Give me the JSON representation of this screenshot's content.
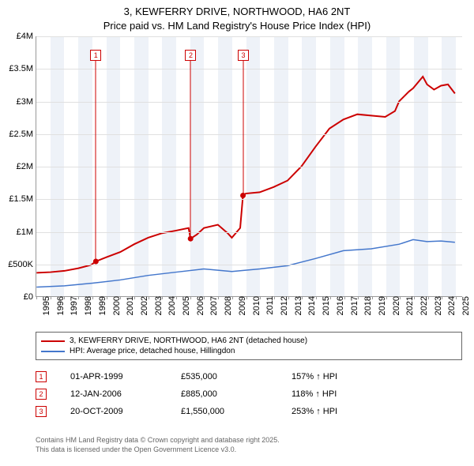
{
  "title_line1": "3, KEWFERRY DRIVE, NORTHWOOD, HA6 2NT",
  "title_line2": "Price paid vs. HM Land Registry's House Price Index (HPI)",
  "chart": {
    "type": "line",
    "background_color": "#ffffff",
    "shade_color": "#eef2f8",
    "grid_color": "#e0e0e0",
    "axis_color": "#999999",
    "xlim": [
      1995,
      2025.5
    ],
    "ylim": [
      0,
      4000000
    ],
    "ytick_step": 500000,
    "y_labels": [
      "£0",
      "£500K",
      "£1M",
      "£1.5M",
      "£2M",
      "£2.5M",
      "£3M",
      "£3.5M",
      "£4M"
    ],
    "x_years": [
      1995,
      1996,
      1997,
      1998,
      1999,
      2000,
      2001,
      2002,
      2003,
      2004,
      2005,
      2006,
      2007,
      2008,
      2009,
      2010,
      2011,
      2012,
      2013,
      2014,
      2015,
      2016,
      2017,
      2018,
      2019,
      2020,
      2021,
      2022,
      2023,
      2024,
      2025
    ],
    "series": [
      {
        "name": "3, KEWFERRY DRIVE, NORTHWOOD, HA6 2NT (detached house)",
        "color": "#cc0000",
        "width": 2,
        "points": [
          [
            1995,
            360000
          ],
          [
            1996,
            370000
          ],
          [
            1997,
            390000
          ],
          [
            1998,
            430000
          ],
          [
            1998.9,
            480000
          ],
          [
            1999.25,
            535000
          ],
          [
            2000,
            600000
          ],
          [
            2001,
            680000
          ],
          [
            2002,
            800000
          ],
          [
            2003,
            900000
          ],
          [
            2004,
            970000
          ],
          [
            2005,
            1010000
          ],
          [
            2005.9,
            1050000
          ],
          [
            2006.04,
            885000
          ],
          [
            2006.5,
            950000
          ],
          [
            2007,
            1050000
          ],
          [
            2008,
            1100000
          ],
          [
            2008.7,
            970000
          ],
          [
            2009,
            900000
          ],
          [
            2009.6,
            1050000
          ],
          [
            2009.8,
            1550000
          ],
          [
            2010,
            1580000
          ],
          [
            2011,
            1600000
          ],
          [
            2012,
            1680000
          ],
          [
            2013,
            1780000
          ],
          [
            2014,
            2000000
          ],
          [
            2015,
            2300000
          ],
          [
            2016,
            2580000
          ],
          [
            2017,
            2720000
          ],
          [
            2018,
            2800000
          ],
          [
            2019,
            2780000
          ],
          [
            2020,
            2760000
          ],
          [
            2020.7,
            2850000
          ],
          [
            2021,
            3000000
          ],
          [
            2021.7,
            3150000
          ],
          [
            2022,
            3200000
          ],
          [
            2022.7,
            3380000
          ],
          [
            2023,
            3260000
          ],
          [
            2023.5,
            3180000
          ],
          [
            2024,
            3240000
          ],
          [
            2024.5,
            3260000
          ],
          [
            2025,
            3120000
          ]
        ]
      },
      {
        "name": "HPI: Average price, detached house, Hillingdon",
        "color": "#4477cc",
        "width": 1.5,
        "points": [
          [
            1995,
            140000
          ],
          [
            1997,
            160000
          ],
          [
            1999,
            200000
          ],
          [
            2001,
            250000
          ],
          [
            2003,
            320000
          ],
          [
            2005,
            370000
          ],
          [
            2007,
            420000
          ],
          [
            2009,
            380000
          ],
          [
            2011,
            420000
          ],
          [
            2013,
            470000
          ],
          [
            2015,
            580000
          ],
          [
            2017,
            700000
          ],
          [
            2019,
            730000
          ],
          [
            2021,
            800000
          ],
          [
            2022,
            870000
          ],
          [
            2023,
            840000
          ],
          [
            2024,
            850000
          ],
          [
            2025,
            830000
          ]
        ]
      }
    ],
    "sale_markers": [
      {
        "n": "1",
        "year": 1999.25,
        "price": 535000,
        "color": "#cc0000"
      },
      {
        "n": "2",
        "year": 2006.04,
        "price": 885000,
        "color": "#cc0000"
      },
      {
        "n": "3",
        "year": 2009.8,
        "price": 1550000,
        "color": "#cc0000"
      }
    ],
    "label_fontsize": 11
  },
  "legend": {
    "items": [
      {
        "color": "#cc0000",
        "label": "3, KEWFERRY DRIVE, NORTHWOOD, HA6 2NT (detached house)"
      },
      {
        "color": "#4477cc",
        "label": "HPI: Average price, detached house, Hillingdon"
      }
    ]
  },
  "sales": [
    {
      "n": "1",
      "color": "#cc0000",
      "date": "01-APR-1999",
      "price": "£535,000",
      "hpi": "157% ↑ HPI"
    },
    {
      "n": "2",
      "color": "#cc0000",
      "date": "12-JAN-2006",
      "price": "£885,000",
      "hpi": "118% ↑ HPI"
    },
    {
      "n": "3",
      "color": "#cc0000",
      "date": "20-OCT-2009",
      "price": "£1,550,000",
      "hpi": "253% ↑ HPI"
    }
  ],
  "footer_line1": "Contains HM Land Registry data © Crown copyright and database right 2025.",
  "footer_line2": "This data is licensed under the Open Government Licence v3.0."
}
